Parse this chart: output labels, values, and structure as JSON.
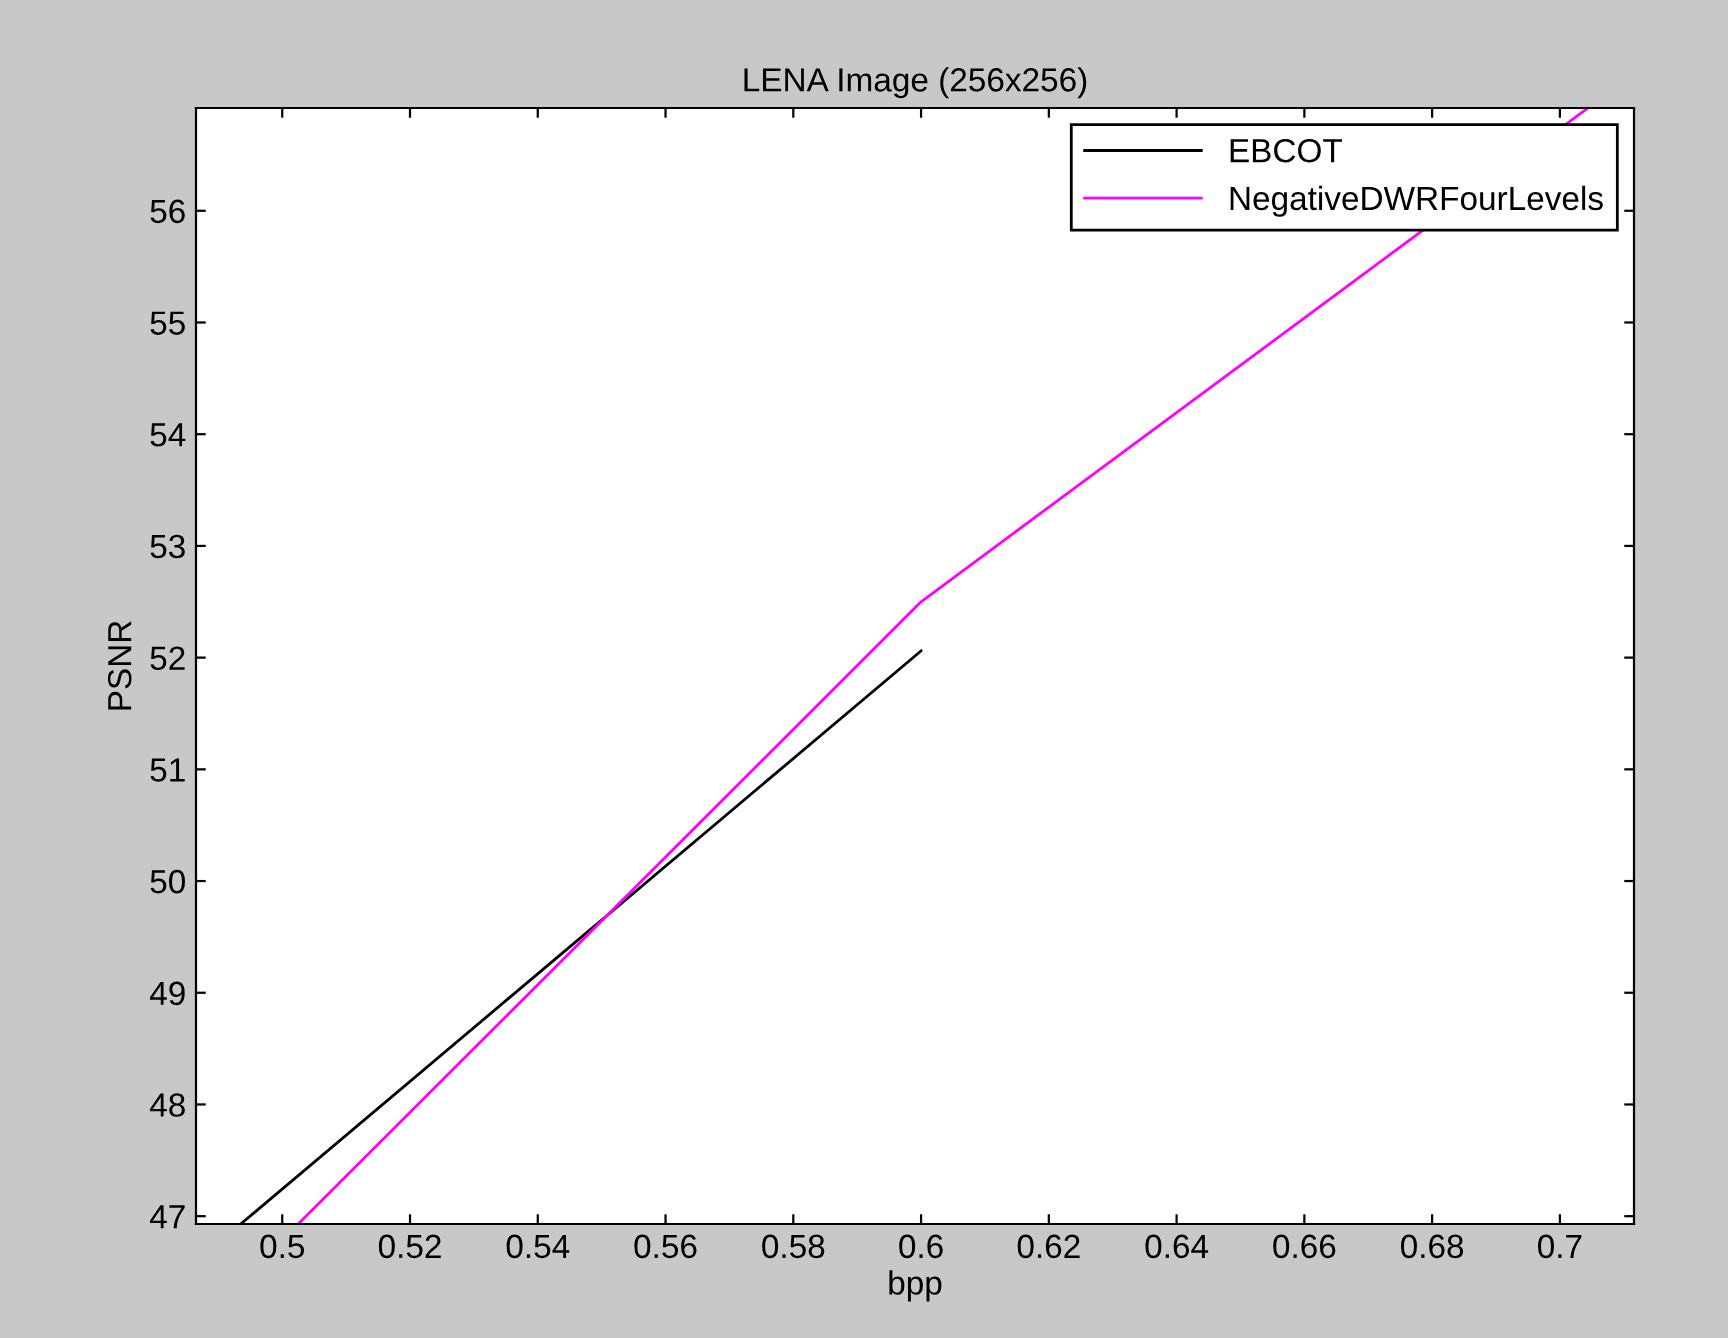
{
  "chart_data": {
    "type": "line",
    "title": "LENA Image (256x256)",
    "xlabel": "bpp",
    "ylabel": "PSNR",
    "xlim": [
      0.4865,
      0.7116
    ],
    "ylim": [
      46.93,
      56.92
    ],
    "xticks": [
      0.5,
      0.52,
      0.54,
      0.56,
      0.58,
      0.6,
      0.62,
      0.64,
      0.66,
      0.68,
      0.7
    ],
    "yticks": [
      47,
      48,
      49,
      50,
      51,
      52,
      53,
      54,
      55,
      56
    ],
    "grid": false,
    "legend": "top right",
    "series": [
      {
        "name": "EBCOT",
        "color": "#000000",
        "x": [
          0.4935,
          0.6
        ],
        "values": [
          46.93,
          52.06
        ]
      },
      {
        "name": "NegativeDWRFourLevels",
        "color": "#ff00ff",
        "x": [
          0.5025,
          0.6,
          0.7044
        ],
        "values": [
          46.93,
          52.5,
          56.92
        ]
      }
    ]
  }
}
